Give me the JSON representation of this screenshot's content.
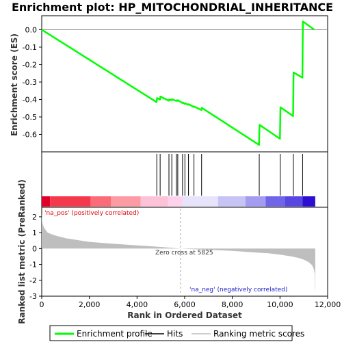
{
  "chart_data": {
    "type": "line",
    "title": "Enrichment plot: HP_MITOCHONDRIAL_INHERITANCE",
    "xlabel": "Rank in Ordered Dataset",
    "es_panel": {
      "ylabel": "Enrichment score (ES)",
      "ylim": [
        -0.7,
        0.08
      ],
      "yticks": [
        0.0,
        -0.1,
        -0.2,
        -0.3,
        -0.4,
        -0.5,
        -0.6
      ],
      "ytick_labels": [
        "0.0",
        "-0.1",
        "-0.2",
        "-0.3",
        "-0.4",
        "-0.5",
        "-0.6"
      ],
      "series": [
        {
          "name": "Enrichment profile",
          "color": "#00ff00",
          "x": [
            0,
            4820,
            4840,
            4960,
            4980,
            5330,
            5350,
            5450,
            5470,
            5640,
            5660,
            5700,
            5720,
            5900,
            5920,
            6000,
            6020,
            6150,
            6170,
            6380,
            6400,
            6700,
            6720,
            9120,
            9140,
            10000,
            10020,
            10550,
            10570,
            10940,
            10960,
            11440
          ],
          "y": [
            0.0,
            -0.415,
            -0.392,
            -0.4,
            -0.383,
            -0.407,
            -0.4,
            -0.405,
            -0.398,
            -0.408,
            -0.405,
            -0.408,
            -0.404,
            -0.42,
            -0.417,
            -0.425,
            -0.422,
            -0.43,
            -0.427,
            -0.443,
            -0.44,
            -0.46,
            -0.448,
            -0.66,
            -0.545,
            -0.625,
            -0.445,
            -0.495,
            -0.245,
            -0.275,
            0.047,
            0.0
          ]
        }
      ]
    },
    "hits": {
      "name": "Hits",
      "x": [
        4830,
        4970,
        5340,
        5460,
        5650,
        5710,
        5910,
        6010,
        6160,
        6390,
        6710,
        9130,
        10010,
        10560,
        10950
      ]
    },
    "rank_metric": {
      "name": "Ranking metric scores",
      "ylabel": "Ranked list metric (PreRanked)",
      "ylim": [
        -3,
        2.6
      ],
      "yticks": [
        2,
        1,
        0,
        -1,
        -2,
        -3
      ],
      "ytick_labels": [
        "2",
        "1",
        "0",
        "-1",
        "-2",
        "-3"
      ],
      "color": "#bebebe",
      "x": [
        0,
        20,
        60,
        120,
        250,
        500,
        1000,
        2000,
        3000,
        4000,
        5000,
        5825,
        6500,
        7000,
        8000,
        9000,
        9500,
        10000,
        10500,
        10800,
        11000,
        11200,
        11350,
        11420,
        11460,
        11470,
        11480
      ],
      "y": [
        2.25,
        1.7,
        1.45,
        1.25,
        1.0,
        0.85,
        0.65,
        0.42,
        0.3,
        0.2,
        0.1,
        0.0,
        -0.05,
        -0.08,
        -0.15,
        -0.25,
        -0.3,
        -0.38,
        -0.5,
        -0.6,
        -0.7,
        -0.85,
        -1.05,
        -1.3,
        -1.6,
        -2.4,
        -2.8
      ]
    },
    "zero_cross_label": "Zero cross at 5825",
    "zero_cross_x": 5825,
    "pos_label": "'na_pos' (positively correlated)",
    "neg_label": "'na_neg' (negatively correlated)",
    "xlim": [
      0,
      12000
    ],
    "xticks": [
      0,
      2000,
      4000,
      6000,
      8000,
      10000,
      12000
    ],
    "xtick_labels": [
      "0",
      "2,000",
      "4,000",
      "6,000",
      "8,000",
      "10,000",
      "12,000"
    ],
    "n_genes": 11480,
    "color_bar": [
      {
        "start": 0,
        "end": 350,
        "color": "#e0002a"
      },
      {
        "start": 350,
        "end": 2050,
        "color": "#f5394c"
      },
      {
        "start": 2050,
        "end": 2900,
        "color": "#fb6b78"
      },
      {
        "start": 2900,
        "end": 4150,
        "color": "#fd9ba3"
      },
      {
        "start": 4150,
        "end": 5300,
        "color": "#fec2d8"
      },
      {
        "start": 5300,
        "end": 5900,
        "color": "#ffd2ec"
      },
      {
        "start": 5900,
        "end": 7400,
        "color": "#e6e3fa"
      },
      {
        "start": 7400,
        "end": 8550,
        "color": "#c7c3f5"
      },
      {
        "start": 8550,
        "end": 9400,
        "color": "#a39cf0"
      },
      {
        "start": 9400,
        "end": 10200,
        "color": "#7064e8"
      },
      {
        "start": 10200,
        "end": 10950,
        "color": "#5846e2"
      },
      {
        "start": 10950,
        "end": 11480,
        "color": "#2c0fd0"
      }
    ],
    "legend": [
      {
        "label": "Enrichment profile",
        "color": "#00ff00"
      },
      {
        "label": "Hits",
        "color": "#000000"
      },
      {
        "label": "Ranking metric scores",
        "color": "#bebebe"
      }
    ],
    "pos_label_color": "#e00000",
    "neg_label_color": "#2222cc"
  }
}
